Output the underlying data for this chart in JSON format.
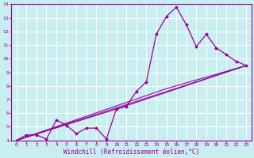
{
  "xlabel": "Windchill (Refroidissement éolien,°C)",
  "bg_color": "#c8eef0",
  "line_color": "#990099",
  "grid_color": "#ffffff",
  "xlim": [
    -0.5,
    23.5
  ],
  "ylim": [
    4,
    14
  ],
  "xtick_labels": [
    "0",
    "1",
    "2",
    "3",
    "4",
    "5",
    "6",
    "7",
    "8",
    "9",
    "10",
    "11",
    "12",
    "13",
    "14",
    "15",
    "16",
    "17",
    "18",
    "19",
    "20",
    "21",
    "22",
    "23"
  ],
  "xtick_pos": [
    0,
    1,
    2,
    3,
    4,
    5,
    6,
    7,
    8,
    9,
    10,
    11,
    12,
    13,
    14,
    15,
    16,
    17,
    18,
    19,
    20,
    21,
    22,
    23
  ],
  "ytick_pos": [
    4,
    5,
    6,
    7,
    8,
    9,
    10,
    11,
    12,
    13,
    14
  ],
  "series1_x": [
    0,
    1,
    2,
    3,
    4,
    5,
    6,
    7,
    8,
    9,
    10,
    11,
    12,
    13,
    14,
    15,
    16,
    17,
    18,
    19,
    20,
    21,
    22,
    23
  ],
  "series1_y": [
    4.0,
    4.4,
    4.4,
    4.1,
    5.5,
    5.1,
    4.5,
    4.9,
    4.9,
    4.1,
    6.3,
    6.5,
    7.6,
    8.3,
    11.8,
    13.1,
    13.8,
    12.5,
    10.9,
    11.8,
    10.8,
    10.3,
    9.8,
    9.5
  ],
  "series2_x": [
    0,
    23
  ],
  "series2_y": [
    4.0,
    9.5
  ],
  "series3_x": [
    0,
    10,
    23
  ],
  "series3_y": [
    4.0,
    6.3,
    9.5
  ],
  "series4_x": [
    0,
    15,
    23
  ],
  "series4_y": [
    4.0,
    7.8,
    9.5
  ]
}
